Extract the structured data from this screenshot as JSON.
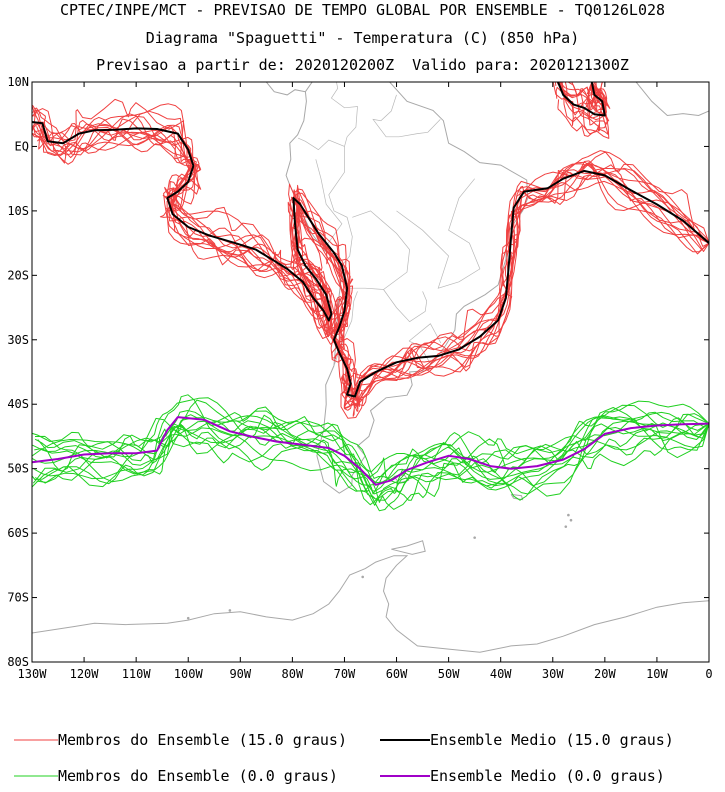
{
  "chart_data": {
    "type": "line",
    "title": "CPTEC/INPE/MCT - PREVISAO DE TEMPO GLOBAL POR ENSEMBLE - TQ0126L028",
    "subtitle": "Diagrama \"Spaguetti\" - Temperatura (C) (850 hPa)",
    "subtitle2": "Previsao a partir de: 2020120200Z  Valido para: 2020121300Z",
    "xlim": [
      -130,
      0
    ],
    "ylim": [
      -80,
      10
    ],
    "x_ticks": [
      -130,
      -120,
      -110,
      -100,
      -90,
      -80,
      -70,
      -60,
      -50,
      -40,
      -30,
      -20,
      -10,
      0
    ],
    "x_tick_labels": [
      "130W",
      "120W",
      "110W",
      "100W",
      "90W",
      "80W",
      "70W",
      "60W",
      "50W",
      "40W",
      "30W",
      "20W",
      "10W",
      "0"
    ],
    "y_ticks": [
      10,
      0,
      -10,
      -20,
      -30,
      -40,
      -50,
      -60,
      -70,
      -80
    ],
    "y_tick_labels": [
      "10N",
      "EQ",
      "10S",
      "20S",
      "30S",
      "40S",
      "50S",
      "60S",
      "70S",
      "80S"
    ],
    "colors": {
      "members_15": "#f04040",
      "mean_15": "#000000",
      "members_0": "#20d020",
      "mean_0": "#a000c8",
      "coast": "#a8a8a8"
    },
    "legend": [
      {
        "label": "Membros do Ensemble (15.0 graus)",
        "color": "#f04040"
      },
      {
        "label": "Ensemble Medio (15.0 graus)",
        "color": "#000000"
      },
      {
        "label": "Membros do Ensemble (0.0 graus)",
        "color": "#20d020"
      },
      {
        "label": "Ensemble Medio (0.0 graus)",
        "color": "#a000c8"
      }
    ],
    "series": [
      {
        "name": "Ensemble Medio (15.0 graus)",
        "color": "#000000",
        "segments": [
          [
            [
              -130,
              3.8
            ],
            [
              -128,
              3.6
            ],
            [
              -127,
              0.8
            ],
            [
              -124,
              0.5
            ],
            [
              -121,
              2
            ],
            [
              -118,
              2.5
            ],
            [
              -114,
              2.6
            ],
            [
              -110,
              2.8
            ],
            [
              -106,
              2.7
            ],
            [
              -102,
              2
            ],
            [
              -100,
              -0.5
            ],
            [
              -99,
              -3
            ],
            [
              -100,
              -5.5
            ],
            [
              -102,
              -7
            ],
            [
              -104,
              -8
            ],
            [
              -103,
              -10.5
            ],
            [
              -100,
              -12.5
            ],
            [
              -96,
              -13.8
            ],
            [
              -91,
              -15
            ],
            [
              -87,
              -16
            ],
            [
              -84,
              -17.5
            ],
            [
              -81,
              -19
            ],
            [
              -78,
              -21
            ],
            [
              -76,
              -23.5
            ],
            [
              -74,
              -25.5
            ],
            [
              -73,
              -27
            ],
            [
              -72.5,
              -26
            ],
            [
              -73.5,
              -23
            ],
            [
              -75.5,
              -20.5
            ],
            [
              -77.5,
              -18.5
            ],
            [
              -79,
              -16
            ],
            [
              -79.5,
              -12
            ],
            [
              -79.8,
              -8
            ],
            [
              -78.5,
              -9
            ],
            [
              -75,
              -13.5
            ],
            [
              -72,
              -16.5
            ],
            [
              -70.5,
              -18.5
            ],
            [
              -69.5,
              -22
            ],
            [
              -70,
              -25.5
            ],
            [
              -71,
              -28
            ],
            [
              -72,
              -30
            ],
            [
              -71,
              -32
            ],
            [
              -69.5,
              -34.5
            ],
            [
              -68.8,
              -36.8
            ],
            [
              -69.5,
              -38.5
            ],
            [
              -68,
              -38.8
            ],
            [
              -67,
              -36.5
            ],
            [
              -64,
              -35
            ],
            [
              -60,
              -33.5
            ],
            [
              -56,
              -32.8
            ],
            [
              -52,
              -32.5
            ],
            [
              -48,
              -31.5
            ],
            [
              -44,
              -29.5
            ],
            [
              -40.5,
              -27
            ],
            [
              -39,
              -23.5
            ],
            [
              -38.5,
              -19
            ],
            [
              -38,
              -14
            ],
            [
              -37.5,
              -9.5
            ],
            [
              -35.5,
              -7
            ],
            [
              -31,
              -6.5
            ],
            [
              -28,
              -5
            ],
            [
              -24,
              -3.8
            ],
            [
              -20,
              -4.5
            ],
            [
              -15,
              -6.8
            ],
            [
              -10,
              -9
            ],
            [
              -5,
              -11.5
            ],
            [
              0,
              -15
            ]
          ],
          [
            [
              -29,
              10
            ],
            [
              -28,
              8
            ],
            [
              -26,
              6.5
            ],
            [
              -24,
              6
            ],
            [
              -22,
              5
            ],
            [
              -20,
              4.8
            ],
            [
              -20.5,
              7
            ],
            [
              -22,
              8
            ],
            [
              -22.5,
              10
            ]
          ]
        ]
      },
      {
        "name": "Ensemble Medio (0.0 graus)",
        "color": "#a000c8",
        "segments": [
          [
            [
              -130,
              -49
            ],
            [
              -125,
              -48.5
            ],
            [
              -120,
              -47.8
            ],
            [
              -115,
              -47.6
            ],
            [
              -110,
              -47.6
            ],
            [
              -106,
              -47.2
            ],
            [
              -104,
              -44
            ],
            [
              -102,
              -42
            ],
            [
              -97,
              -42.4
            ],
            [
              -92,
              -44.2
            ],
            [
              -88,
              -45
            ],
            [
              -83,
              -45.8
            ],
            [
              -78,
              -46.3
            ],
            [
              -73,
              -46.8
            ],
            [
              -70,
              -48
            ],
            [
              -67,
              -50
            ],
            [
              -64,
              -52.5
            ],
            [
              -61,
              -51.8
            ],
            [
              -58,
              -50.2
            ],
            [
              -54,
              -49
            ],
            [
              -50,
              -48
            ],
            [
              -46,
              -48.5
            ],
            [
              -42,
              -49.6
            ],
            [
              -38,
              -50
            ],
            [
              -33,
              -49.6
            ],
            [
              -28,
              -48.6
            ],
            [
              -24,
              -47
            ],
            [
              -20,
              -44.6
            ],
            [
              -15,
              -43.7
            ],
            [
              -10,
              -43.3
            ],
            [
              -5,
              -43.1
            ],
            [
              0,
              -43
            ]
          ]
        ]
      }
    ]
  }
}
